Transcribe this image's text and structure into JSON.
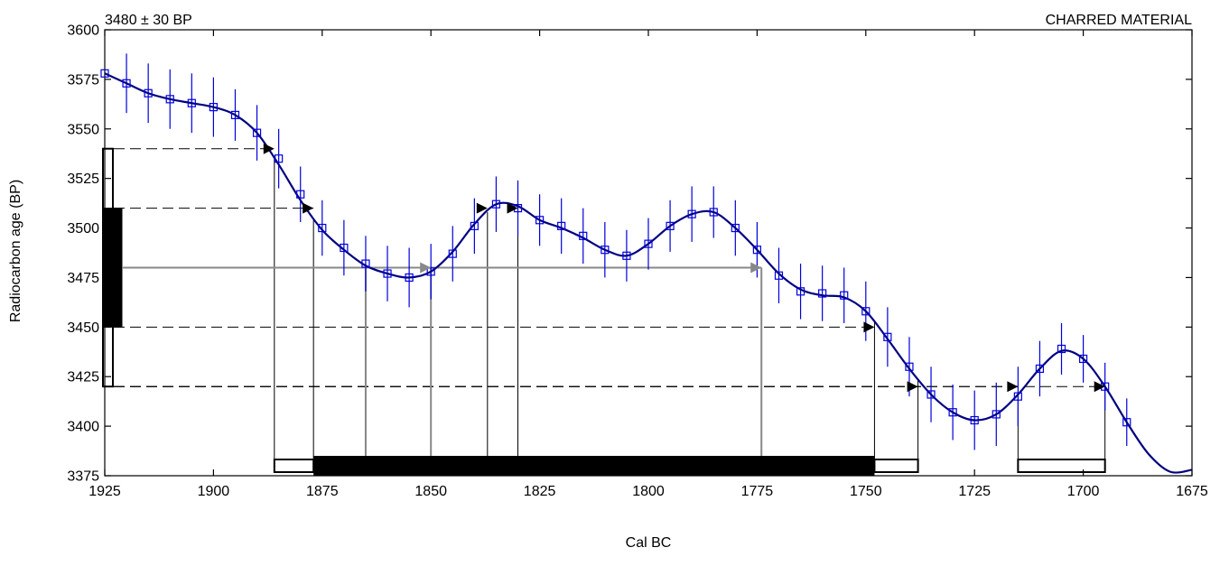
{
  "chart_data": {
    "type": "line",
    "header_left": "3480 ± 30 BP",
    "header_right": "CHARRED MATERIAL",
    "xlabel": "Cal BC",
    "ylabel": "Radiocarbon age (BP)",
    "xlim": [
      1925,
      1675
    ],
    "ylim": [
      3375,
      3600
    ],
    "x_ticks": [
      1925,
      1900,
      1875,
      1850,
      1825,
      1800,
      1775,
      1750,
      1725,
      1700,
      1675
    ],
    "y_ticks": [
      3375,
      3400,
      3425,
      3450,
      3475,
      3500,
      3525,
      3550,
      3575,
      3600
    ],
    "colors": {
      "curve": "#000080",
      "points": "#0000dd",
      "measured": "#888888",
      "intervals": "#000000"
    },
    "calibration_curve": {
      "x": [
        1925,
        1920,
        1915,
        1910,
        1905,
        1900,
        1895,
        1890,
        1885,
        1880,
        1875,
        1870,
        1865,
        1860,
        1855,
        1850,
        1845,
        1840,
        1835,
        1830,
        1825,
        1820,
        1815,
        1810,
        1805,
        1800,
        1795,
        1790,
        1785,
        1780,
        1775,
        1770,
        1765,
        1760,
        1755,
        1750,
        1745,
        1740,
        1735,
        1730,
        1725,
        1720,
        1715,
        1710,
        1705,
        1700,
        1695,
        1690,
        1685,
        1680,
        1675
      ],
      "y": [
        3578,
        3573,
        3568,
        3565,
        3563,
        3561,
        3557,
        3548,
        3532,
        3514,
        3499,
        3489,
        3481,
        3477,
        3475,
        3478,
        3488,
        3502,
        3512,
        3511,
        3504,
        3500,
        3495,
        3489,
        3486,
        3492,
        3501,
        3507,
        3508,
        3500,
        3489,
        3477,
        3469,
        3466,
        3465,
        3458,
        3444,
        3429,
        3416,
        3407,
        3403,
        3406,
        3416,
        3429,
        3438,
        3434,
        3420,
        3402,
        3386,
        3377,
        3378
      ]
    },
    "data_points": {
      "x": [
        1925,
        1920,
        1915,
        1910,
        1905,
        1900,
        1895,
        1890,
        1885,
        1880,
        1875,
        1870,
        1865,
        1860,
        1855,
        1850,
        1845,
        1840,
        1835,
        1830,
        1825,
        1820,
        1815,
        1810,
        1805,
        1800,
        1795,
        1790,
        1785,
        1780,
        1775,
        1770,
        1765,
        1760,
        1755,
        1750,
        1745,
        1740,
        1735,
        1730,
        1725,
        1720,
        1715,
        1710,
        1705,
        1700,
        1695,
        1690
      ],
      "y": [
        3578,
        3573,
        3568,
        3565,
        3563,
        3561,
        3557,
        3548,
        3535,
        3517,
        3500,
        3490,
        3482,
        3477,
        3475,
        3478,
        3487,
        3501,
        3512,
        3510,
        3504,
        3501,
        3496,
        3489,
        3486,
        3492,
        3501,
        3507,
        3508,
        3500,
        3489,
        3476,
        3468,
        3467,
        3466,
        3458,
        3445,
        3430,
        3416,
        3407,
        3403,
        3406,
        3415,
        3429,
        3439,
        3434,
        3420,
        3402
      ],
      "error": [
        0,
        15,
        15,
        15,
        15,
        15,
        13,
        14,
        15,
        14,
        14,
        14,
        14,
        14,
        15,
        14,
        14,
        14,
        14,
        14,
        13,
        14,
        14,
        14,
        13,
        13,
        13,
        14,
        13,
        14,
        14,
        14,
        14,
        14,
        14,
        15,
        15,
        15,
        14,
        14,
        15,
        16,
        15,
        14,
        13,
        12,
        12,
        12
      ]
    },
    "measurement": {
      "age": 3480,
      "sigma1": [
        3450,
        3510
      ],
      "sigma2": [
        3420,
        3540
      ]
    },
    "projection_lines": {
      "dashed": [
        {
          "y": 3540,
          "x_end": 1886
        },
        {
          "y": 3510,
          "x_end": 1877
        },
        {
          "y": 3450,
          "x_end": 1748
        },
        {
          "y": 3420,
          "x_end": 1738
        },
        {
          "y": 3420,
          "x_end": 1715
        },
        {
          "y": 3420,
          "x_end": 1695
        }
      ],
      "measured_line": {
        "y": 3480,
        "x_end": 1774,
        "arrows_at": [
          1850,
          1774
        ]
      },
      "vertical_black": [
        1886,
        1877,
        1837,
        1830,
        1748,
        1738,
        1715,
        1695
      ],
      "vertical_grey": [
        1865,
        1850,
        1774
      ],
      "arrows_black": [
        {
          "x": 1886,
          "y": 3540
        },
        {
          "x": 1877,
          "y": 3510
        },
        {
          "x": 1837,
          "y": 3510
        },
        {
          "x": 1830,
          "y": 3510
        },
        {
          "x": 1748,
          "y": 3450
        },
        {
          "x": 1738,
          "y": 3420
        },
        {
          "x": 1715,
          "y": 3420
        },
        {
          "x": 1695,
          "y": 3420
        }
      ]
    },
    "calibrated_intervals": {
      "sigma1": [
        [
          1877,
          1748
        ]
      ],
      "sigma2": [
        [
          1886,
          1877
        ],
        [
          1748,
          1738
        ],
        [
          1715,
          1695
        ]
      ]
    }
  }
}
